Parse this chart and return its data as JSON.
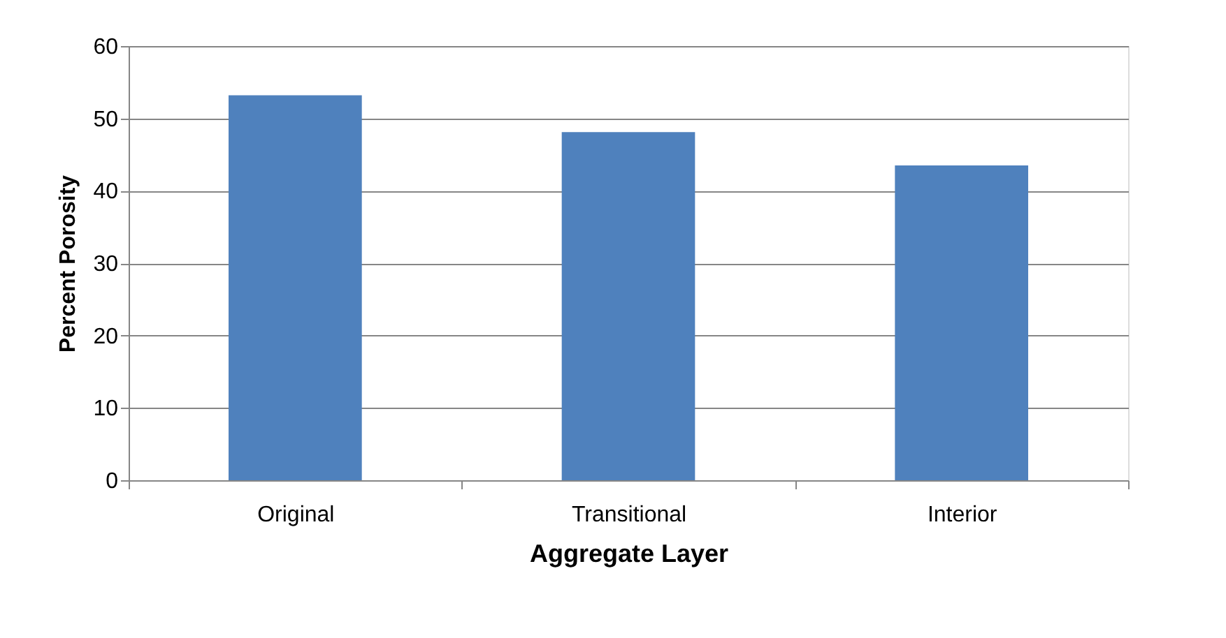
{
  "chart_data": {
    "type": "bar",
    "xlabel": "Aggregate Layer",
    "ylabel": "Percent Porosity",
    "categories": [
      "Original",
      "Transitional",
      "Interior"
    ],
    "values": [
      53.2,
      48.1,
      43.5
    ],
    "color": "#4f81bd",
    "ylim": [
      0,
      60
    ],
    "yticks": [
      0,
      10,
      20,
      30,
      40,
      50,
      60
    ],
    "grid": "y"
  }
}
